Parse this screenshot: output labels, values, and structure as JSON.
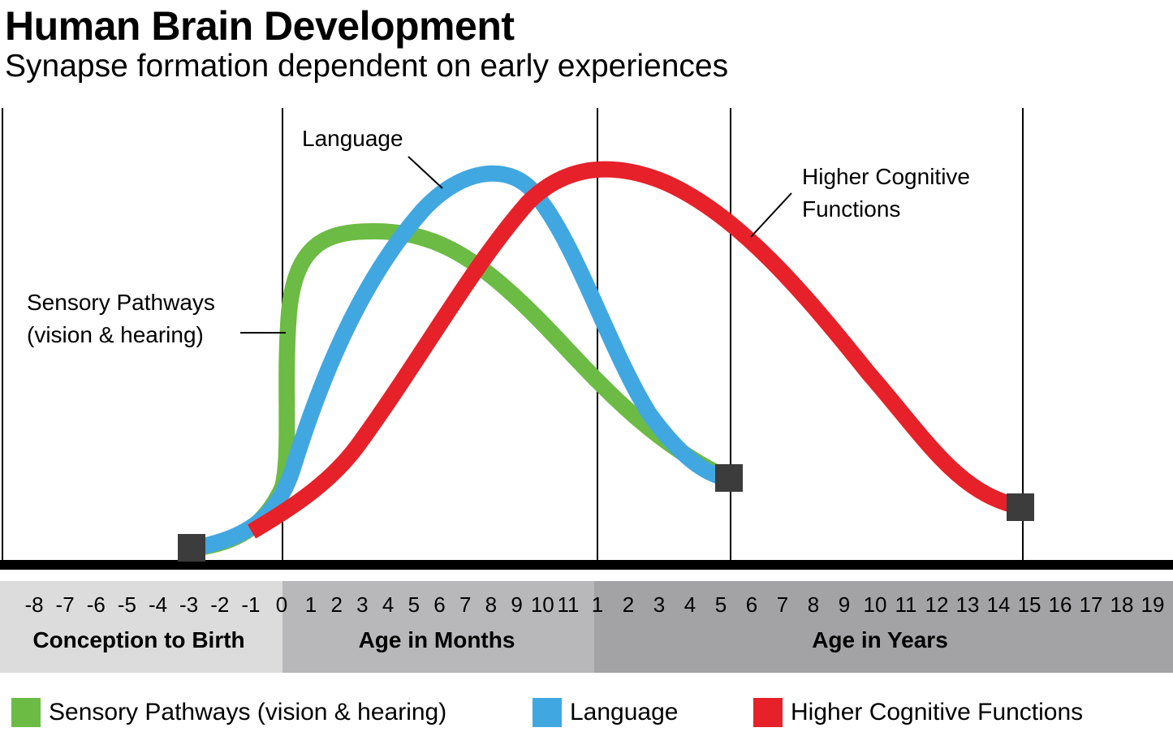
{
  "header": {
    "title": "Human Brain Development",
    "subtitle": "Synapse formation dependent on early experiences"
  },
  "chart_data": {
    "type": "line",
    "title": "Human Brain Development",
    "subtitle": "Synapse formation dependent on early experiences",
    "xlabel": "",
    "ylabel": "",
    "grid": "vertical lines at birth, 1 year, 7 years and 16 years",
    "x_segments": [
      {
        "name": "Conception to Birth",
        "unit": "months",
        "ticks": [
          "-8",
          "-7",
          "-6",
          "-5",
          "-4",
          "-3",
          "-2",
          "-1",
          "0"
        ]
      },
      {
        "name": "Age in Months",
        "unit": "months",
        "ticks": [
          "1",
          "2",
          "3",
          "4",
          "5",
          "6",
          "7",
          "8",
          "9",
          "10",
          "11"
        ]
      },
      {
        "name": "Age in Years",
        "unit": "years",
        "ticks": [
          "1",
          "2",
          "3",
          "4",
          "5",
          "6",
          "7",
          "8",
          "9",
          "10",
          "11",
          "12",
          "13",
          "14",
          "15",
          "16",
          "17",
          "18",
          "19"
        ]
      }
    ],
    "series": [
      {
        "name": "Sensory Pathways (vision & hearing)",
        "color": "#6cbb44",
        "points": [
          [
            "-3 months",
            0.02
          ],
          [
            "-1 months",
            0.12
          ],
          [
            "0 months",
            0.55
          ],
          [
            "1 month",
            0.72
          ],
          [
            "3 months",
            0.74
          ],
          [
            "6 months",
            0.64
          ],
          [
            "9 months",
            0.47
          ],
          [
            "1 year",
            0.32
          ],
          [
            "4 years",
            0.2
          ],
          [
            "7 years",
            0.17
          ]
        ]
      },
      {
        "name": "Language",
        "color": "#41a7e0",
        "points": [
          [
            "-3 months",
            0.02
          ],
          [
            "-1 months",
            0.1
          ],
          [
            "0 months",
            0.17
          ],
          [
            "1 month",
            0.32
          ],
          [
            "3 months",
            0.55
          ],
          [
            "6 months",
            0.86
          ],
          [
            "8 months",
            0.98
          ],
          [
            "9 months",
            0.95
          ],
          [
            "11 months",
            0.7
          ],
          [
            "1 year",
            0.5
          ],
          [
            "4 years",
            0.25
          ],
          [
            "7 years",
            0.17
          ]
        ]
      },
      {
        "name": "Higher Cognitive Functions",
        "color": "#e62129",
        "points": [
          [
            "-1 months",
            0.1
          ],
          [
            "0 months",
            0.15
          ],
          [
            "3 months",
            0.3
          ],
          [
            "6 months",
            0.58
          ],
          [
            "9 months",
            0.85
          ],
          [
            "1 year",
            0.99
          ],
          [
            "4 years",
            0.92
          ],
          [
            "7 years",
            0.78
          ],
          [
            "10 years",
            0.47
          ],
          [
            "13 years",
            0.2
          ],
          [
            "16 years",
            0.11
          ]
        ]
      }
    ],
    "annotations": [
      {
        "lines": [
          "Language"
        ],
        "series": "Language"
      },
      {
        "lines": [
          "Higher Cognitive",
          "Functions"
        ],
        "series": "Higher Cognitive Functions"
      },
      {
        "lines": [
          "Sensory Pathways",
          "(vision & hearing)"
        ],
        "series": "Sensory Pathways (vision & hearing)"
      }
    ],
    "legend": {
      "placement": "bottom",
      "entries": [
        {
          "label": "Sensory Pathways (vision & hearing)",
          "color": "#6cbb44"
        },
        {
          "label": "Language",
          "color": "#41a7e0"
        },
        {
          "label": "Higher Cognitive Functions",
          "color": "#e62129"
        }
      ]
    },
    "band_colors": {
      "prenatal": "#dcdcdd",
      "months": "#b8b8ba",
      "years": "#a3a3a5"
    },
    "marker_color": "#3c3c3c"
  }
}
